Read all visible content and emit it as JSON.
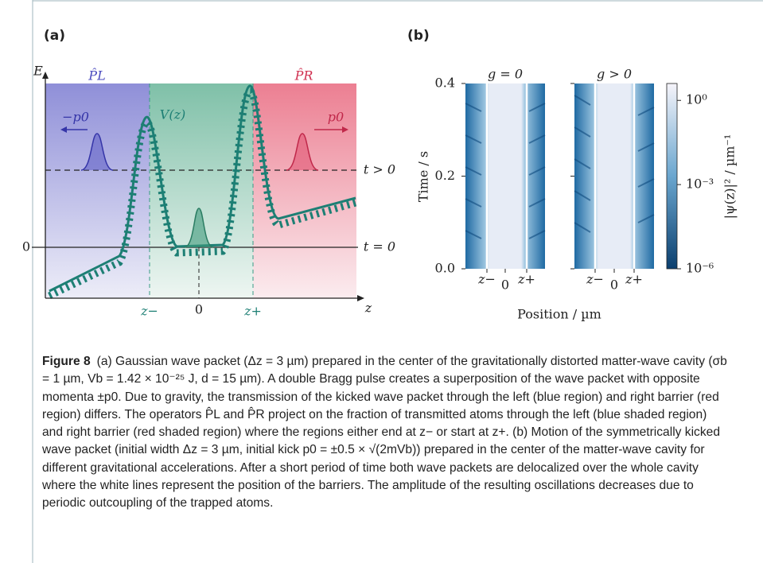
{
  "panel_a": {
    "label": "(a)",
    "axis_e": "E",
    "axis_z": "z",
    "p_left": "P̂L",
    "p_right": "P̂R",
    "potential": "V(z)",
    "minus_p0": "−p0",
    "p0": "p0",
    "t_pos": "t > 0",
    "t_zero": "t = 0",
    "zero_e": "0",
    "z_minus": "z−",
    "z_zero": "0",
    "z_plus": "z+"
  },
  "panel_b": {
    "label": "(b)",
    "titles": [
      "g = 0",
      "g > 0"
    ],
    "ylabel": "Time / s",
    "xlabel": "Position / µm",
    "ylim": [
      0,
      0.4
    ],
    "yticks": [
      {
        "value": 0,
        "label": "0.0"
      },
      0.2,
      0.4
    ],
    "xtick_labels": [
      "z−",
      "0",
      "z+"
    ],
    "colorbar_label": "|ψ(z)|² / µm⁻¹",
    "log_scale": true,
    "clim": [
      1e-06,
      4
    ],
    "colorbar_ticks": [
      {
        "value": 1,
        "label": "10⁰"
      },
      {
        "value": 0.001,
        "label": "10⁻³"
      },
      {
        "value": 1e-06,
        "label": "10⁻⁶"
      }
    ]
  },
  "caption": {
    "figure": "Figure 8",
    "text": "(a) Gaussian wave packet (Δz = 3 µm) prepared in the center of the gravitationally distorted matter-wave cavity (σb = 1 µm, Vb = 1.42 × 10⁻²⁵ J, d = 15 µm). A double Bragg pulse creates a superposition of the wave packet with opposite momenta ±p0. Due to gravity, the transmission of the kicked wave packet through the left (blue region) and right barrier (red region) differs. The operators P̂L and P̂R project on the fraction of transmitted atoms through the left (blue shaded region) and right barrier (red shaded region) where the regions either end at z− or start at z+. (b) Motion of the symmetrically kicked wave packet (initial width Δz = 3 µm, initial kick p0 = ±0.5 × √(2mVb)) prepared in the center of the matter-wave cavity for different gravitational accelerations. After a short period of time both wave packets are delocalized over the whole cavity where the white lines represent the position of the barriers. The amplitude of the resulting oscillations decreases due to periodic outcoupling of the trapped atoms."
  }
}
